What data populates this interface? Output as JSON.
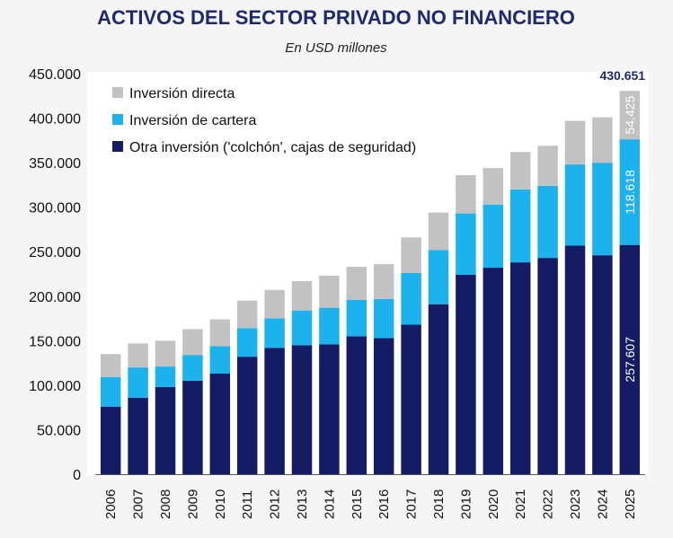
{
  "chart_data": {
    "type": "bar",
    "stacked": true,
    "title": "ACTIVOS DEL SECTOR PRIVADO NO FINANCIERO",
    "subtitle": "En USD millones",
    "categories": [
      "2006",
      "2007",
      "2008",
      "2009",
      "2010",
      "2011",
      "2012",
      "2013",
      "2014",
      "2015",
      "2016",
      "2017",
      "2018",
      "2019",
      "2020",
      "2021",
      "2022",
      "2023",
      "2024",
      "2025"
    ],
    "series": [
      {
        "name": "Otra inversión ('colchón', cajas de seguridad)",
        "color": "#131c64",
        "values": [
          76000,
          86000,
          98000,
          105000,
          113000,
          132000,
          142000,
          145000,
          146000,
          155000,
          153000,
          168000,
          191000,
          224000,
          232000,
          238000,
          243000,
          257000,
          246000,
          257607
        ]
      },
      {
        "name": "Inversión de cartera",
        "color": "#1cb2ee",
        "values": [
          33000,
          34000,
          23000,
          29000,
          31000,
          32000,
          33000,
          39000,
          41000,
          41000,
          44000,
          58000,
          61000,
          69000,
          71000,
          82000,
          81000,
          91000,
          104000,
          118618
        ]
      },
      {
        "name": "Inversión directa",
        "color": "#c2c2c2",
        "values": [
          26000,
          27000,
          29000,
          29000,
          30000,
          31000,
          32000,
          33000,
          36000,
          37000,
          39000,
          40000,
          42000,
          43000,
          41000,
          42000,
          45000,
          49000,
          51000,
          54425
        ]
      }
    ],
    "ylim": [
      0,
      450000
    ],
    "yticks": [
      "0",
      "50.000",
      "100.000",
      "150.000",
      "200.000",
      "250.000",
      "300.000",
      "350.000",
      "400.000",
      "450.000"
    ],
    "legend_order": [
      "Inversión directa",
      "Inversión de cartera",
      "Otra inversión ('colchón', cajas de seguridad)"
    ],
    "legend_position": "top-left",
    "grid": false,
    "annotations": {
      "total_2025": "430.651",
      "directa_2025": "54.425",
      "cartera_2025": "118.618",
      "otra_2025": "257.607"
    }
  }
}
